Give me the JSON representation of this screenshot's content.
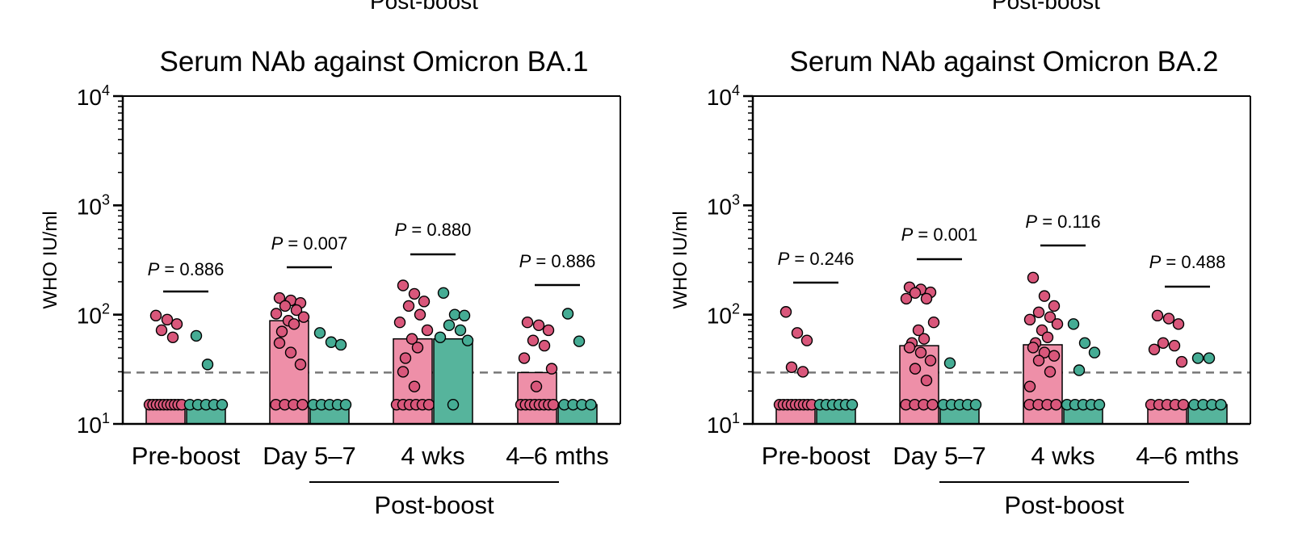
{
  "top_cut_labels": [
    "Post-boost",
    "Post-boost"
  ],
  "colors": {
    "pink": "#ee8fa8",
    "pink_edge": "#8e1b3e",
    "pink_dot": "#d9577b",
    "teal": "#56b49c",
    "teal_edge": "#1f5a4c",
    "teal_dot": "#45ac94",
    "dashed": "#777777"
  },
  "chart_data": [
    {
      "type": "bar",
      "title": "Serum NAb against Omicron BA.1",
      "ylabel": "WHO IU/ml",
      "yscale": "log",
      "ylim": [
        10,
        10000
      ],
      "y_ticks": [
        {
          "base": "10",
          "exp": "1"
        },
        {
          "base": "10",
          "exp": "2"
        },
        {
          "base": "10",
          "exp": "3"
        },
        {
          "base": "10",
          "exp": "4"
        }
      ],
      "threshold": 29.5,
      "categories": [
        "Pre-boost",
        "Day 5–7",
        "4 wks",
        "4–6 mths"
      ],
      "group_label": "Post-boost",
      "p_values": [
        "0.886",
        "0.007",
        "0.880",
        "0.886"
      ],
      "series": [
        {
          "name": "pink",
          "bars": [
            15,
            88,
            60,
            29.5
          ],
          "points": [
            [
              98,
              90,
              82,
              72,
              62,
              15,
              15,
              15,
              15,
              15,
              15,
              15,
              15,
              15,
              15
            ],
            [
              142,
              135,
              128,
              120,
              110,
              102,
              95,
              88,
              82,
              70,
              55,
              45,
              35,
              15,
              15,
              15,
              15
            ],
            [
              185,
              155,
              132,
              120,
              100,
              85,
              72,
              60,
              50,
              40,
              30,
              22,
              15,
              15,
              15,
              15,
              15,
              15
            ],
            [
              85,
              80,
              72,
              58,
              52,
              40,
              32,
              22,
              15,
              15,
              15,
              15,
              15,
              15,
              15,
              15
            ]
          ]
        },
        {
          "name": "teal",
          "bars": [
            15,
            15,
            60,
            15
          ],
          "points": [
            [
              64,
              35,
              15,
              15,
              15,
              15,
              15
            ],
            [
              68,
              56,
              53,
              15,
              15,
              15,
              15,
              15
            ],
            [
              158,
              100,
              98,
              80,
              72,
              62,
              58,
              15
            ],
            [
              102,
              57,
              15,
              15,
              15,
              15
            ]
          ]
        }
      ]
    },
    {
      "type": "bar",
      "title": "Serum NAb against Omicron BA.2",
      "ylabel": "WHO IU/ml",
      "yscale": "log",
      "ylim": [
        10,
        10000
      ],
      "y_ticks": [
        {
          "base": "10",
          "exp": "1"
        },
        {
          "base": "10",
          "exp": "2"
        },
        {
          "base": "10",
          "exp": "3"
        },
        {
          "base": "10",
          "exp": "4"
        }
      ],
      "threshold": 29.5,
      "categories": [
        "Pre-boost",
        "Day 5–7",
        "4 wks",
        "4–6 mths"
      ],
      "group_label": "Post-boost",
      "p_values": [
        "0.246",
        "0.001",
        "0.116",
        "0.488"
      ],
      "series": [
        {
          "name": "pink",
          "bars": [
            15,
            52,
            53,
            15
          ],
          "points": [
            [
              106,
              68,
              58,
              33,
              30,
              15,
              15,
              15,
              15,
              15,
              15,
              15,
              15,
              15
            ],
            [
              178,
              170,
              160,
              158,
              140,
              140,
              85,
              72,
              60,
              55,
              50,
              45,
              38,
              32,
              25,
              15,
              15,
              15,
              15
            ],
            [
              218,
              148,
              120,
              105,
              95,
              90,
              82,
              72,
              62,
              55,
              50,
              45,
              42,
              38,
              30,
              22,
              15,
              15,
              15,
              15
            ],
            [
              98,
              92,
              82,
              55,
              52,
              48,
              37,
              15,
              15,
              15,
              15,
              15
            ]
          ]
        },
        {
          "name": "teal",
          "bars": [
            15,
            15,
            15,
            15
          ],
          "points": [
            [
              15,
              15,
              15,
              15,
              15,
              15
            ],
            [
              36,
              15,
              15,
              15,
              15,
              15
            ],
            [
              82,
              55,
              45,
              31,
              15,
              15,
              15,
              15,
              15
            ],
            [
              40,
              40,
              15,
              15,
              15,
              15
            ]
          ]
        }
      ]
    }
  ]
}
